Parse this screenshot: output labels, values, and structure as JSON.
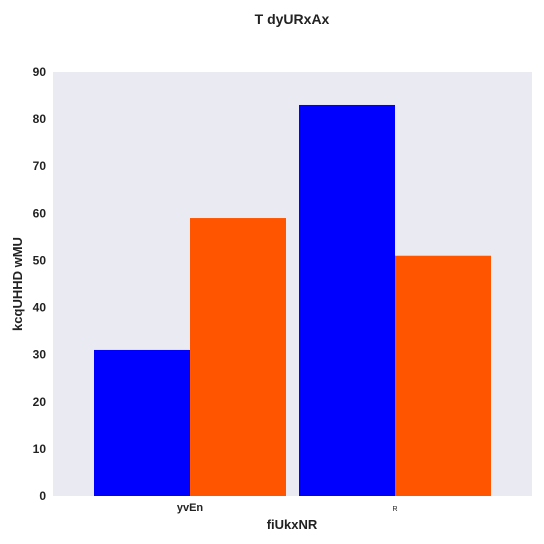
{
  "chart_data": {
    "type": "bar",
    "title": "T dyURxAx",
    "xlabel": "fiUkxNR",
    "ylabel": "kcqUHHD wMU",
    "categories": [
      "yvEn",
      "R"
    ],
    "series": [
      {
        "values": [
          31,
          83
        ],
        "color": "#0000ff"
      },
      {
        "values": [
          59,
          51
        ],
        "color": "#ff5500"
      }
    ],
    "ylim": [
      0,
      90
    ],
    "yticks": [
      0,
      10,
      20,
      30,
      40,
      50,
      60,
      70,
      80,
      90
    ],
    "grid": false,
    "plot_background": "#eaeaf2"
  }
}
